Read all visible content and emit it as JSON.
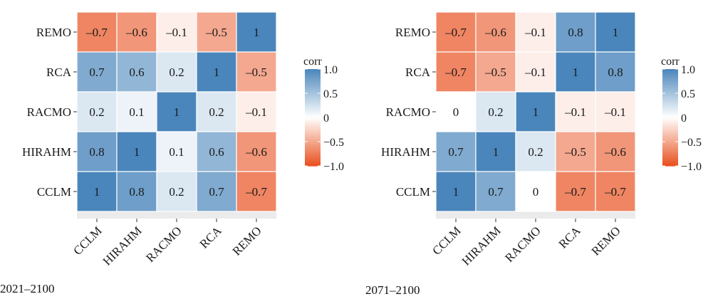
{
  "colors": {
    "panel_bg": "#ebebeb",
    "positive": "#4a86bb",
    "neutral": "#ffffff",
    "negative": "#e8501e",
    "tick": "#333333",
    "text": "#1a1a1a"
  },
  "captions": [
    "2021–2100",
    "2071–2100"
  ],
  "chart_data": [
    {
      "type": "heatmap",
      "caption": "2021–2100",
      "x_categories": [
        "CCLM",
        "HIRAHM",
        "RACMO",
        "RCA",
        "REMO"
      ],
      "y_categories": [
        "CCLM",
        "HIRAHM",
        "RACMO",
        "RCA",
        "REMO"
      ],
      "values": [
        [
          1,
          0.8,
          0.2,
          0.7,
          -0.7
        ],
        [
          0.8,
          1,
          0.1,
          0.6,
          -0.6
        ],
        [
          0.2,
          0.1,
          1,
          0.2,
          -0.1
        ],
        [
          0.7,
          0.6,
          0.2,
          1,
          -0.5
        ],
        [
          -0.7,
          -0.6,
          -0.1,
          -0.5,
          1
        ]
      ],
      "legend": {
        "title": "corr",
        "ticks": [
          "1.0",
          "0.5",
          "0",
          "−0.5",
          "−1.0"
        ],
        "tick_values": [
          1,
          0.5,
          0,
          -0.5,
          -1
        ]
      },
      "value_range": [
        -1,
        1
      ]
    },
    {
      "type": "heatmap",
      "caption": "2071–2100",
      "x_categories": [
        "CCLM",
        "HIRAHM",
        "RACMO",
        "RCA",
        "REMO"
      ],
      "y_categories": [
        "CCLM",
        "HIRAHM",
        "RACMO",
        "RCA",
        "REMO"
      ],
      "values": [
        [
          1,
          0.7,
          0,
          -0.7,
          -0.7
        ],
        [
          0.7,
          1,
          0.2,
          -0.5,
          -0.6
        ],
        [
          0,
          0.2,
          1,
          -0.1,
          -0.1
        ],
        [
          -0.7,
          -0.5,
          -0.1,
          1,
          0.8
        ],
        [
          -0.7,
          -0.6,
          -0.1,
          0.8,
          1
        ]
      ],
      "legend": {
        "title": "corr",
        "ticks": [
          "1.0",
          "0.5",
          "0",
          "−0.5",
          "−1.0"
        ],
        "tick_values": [
          1,
          0.5,
          0,
          -0.5,
          -1
        ]
      },
      "value_range": [
        -1,
        1
      ]
    }
  ]
}
